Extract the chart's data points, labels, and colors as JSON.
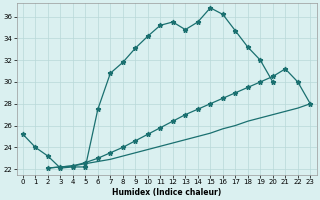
{
  "xlabel": "Humidex (Indice chaleur)",
  "xlim": [
    -0.5,
    23.5
  ],
  "ylim": [
    21.5,
    37.2
  ],
  "xticks": [
    0,
    1,
    2,
    3,
    4,
    5,
    6,
    7,
    8,
    9,
    10,
    11,
    12,
    13,
    14,
    15,
    16,
    17,
    18,
    19,
    20,
    21,
    22,
    23
  ],
  "yticks": [
    22,
    24,
    26,
    28,
    30,
    32,
    34,
    36
  ],
  "line_color": "#1a7070",
  "bg_color": "#daf0f0",
  "grid_color": "#b8d8d8",
  "line1_x": [
    0,
    1,
    2,
    3,
    4,
    5,
    6,
    7,
    8,
    9,
    10,
    11,
    12,
    13,
    14,
    15,
    16,
    17,
    18,
    19,
    20
  ],
  "line1_y": [
    25.2,
    24.0,
    23.2,
    22.1,
    22.2,
    22.2,
    27.5,
    30.8,
    31.8,
    33.1,
    34.2,
    35.2,
    35.5,
    34.8,
    35.5,
    36.8,
    36.2,
    34.7,
    33.2,
    32.0,
    30.0
  ],
  "line2_x": [
    2,
    3,
    4,
    5,
    6,
    7,
    8,
    9,
    10,
    11,
    12,
    13,
    14,
    15,
    16,
    17,
    18,
    19,
    20,
    21,
    22,
    23
  ],
  "line2_y": [
    22.1,
    22.2,
    22.3,
    22.5,
    22.7,
    22.9,
    23.2,
    23.5,
    23.8,
    24.1,
    24.4,
    24.7,
    25.0,
    25.3,
    25.7,
    26.0,
    26.4,
    26.7,
    27.0,
    27.3,
    27.6,
    28.0
  ],
  "line3_x": [
    2,
    3,
    4,
    5,
    6,
    7,
    8,
    9,
    10,
    11,
    12,
    13,
    14,
    15,
    16,
    17,
    18,
    19,
    20,
    21,
    22,
    23
  ],
  "line3_y": [
    22.1,
    22.2,
    22.3,
    22.6,
    23.0,
    23.5,
    24.0,
    24.6,
    25.2,
    25.8,
    26.4,
    27.0,
    27.5,
    28.0,
    28.5,
    29.0,
    29.5,
    30.0,
    30.5,
    31.2,
    30.0,
    28.0
  ]
}
